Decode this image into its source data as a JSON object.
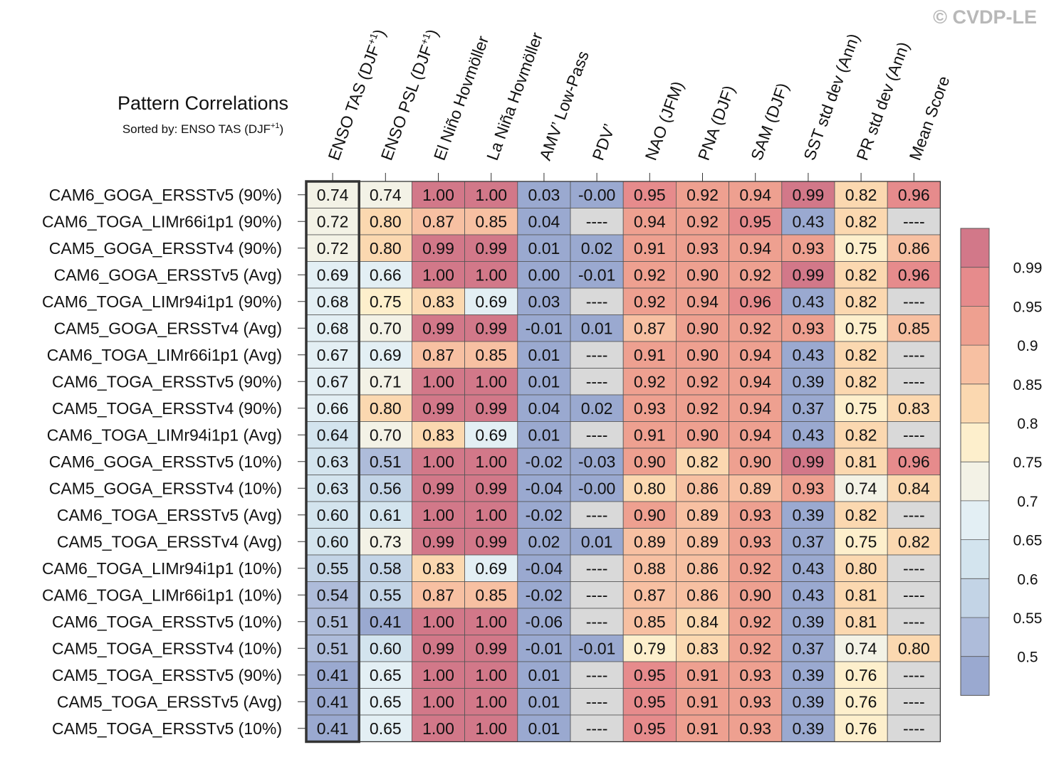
{
  "watermark": "© CVDP-LE",
  "chart_data": {
    "type": "table",
    "title": "Pattern Correlations",
    "subtitle_prefix": "Sorted by: ENSO TAS (DJF",
    "subtitle_sup": "+1",
    "subtitle_suffix": ")",
    "missing_label": "----",
    "columns": [
      {
        "label": "ENSO TAS (DJF",
        "sup": "+1",
        "suffix": ")"
      },
      {
        "label": "ENSO PSL (DJF",
        "sup": "+1",
        "suffix": ")"
      },
      {
        "label": "El Niño Hovmöller"
      },
      {
        "label": "La Niña Hovmöller"
      },
      {
        "label": "AMV’ Low-Pass"
      },
      {
        "label": "PDV’"
      },
      {
        "label": "NAO (JFM)"
      },
      {
        "label": "PNA (DJF)"
      },
      {
        "label": "SAM (DJF)"
      },
      {
        "label": "SST std dev (Ann)"
      },
      {
        "label": "PR std dev (Ann)"
      },
      {
        "label": "Mean Score"
      }
    ],
    "sorted_column": 0,
    "rows": [
      {
        "name": "CAM6_GOGA_ERSSTv5 (90%)",
        "values": [
          "0.74",
          "0.74",
          "1.00",
          "1.00",
          "0.03",
          "-0.00",
          "0.95",
          "0.92",
          "0.94",
          "0.99",
          "0.82",
          "0.96"
        ]
      },
      {
        "name": "CAM6_TOGA_LIMr66i1p1 (90%)",
        "values": [
          "0.72",
          "0.80",
          "0.87",
          "0.85",
          "0.04",
          null,
          "0.94",
          "0.92",
          "0.95",
          "0.43",
          "0.82",
          null
        ]
      },
      {
        "name": "CAM5_GOGA_ERSSTv4 (90%)",
        "values": [
          "0.72",
          "0.80",
          "0.99",
          "0.99",
          "0.01",
          "0.02",
          "0.91",
          "0.93",
          "0.94",
          "0.93",
          "0.75",
          "0.86"
        ]
      },
      {
        "name": "CAM6_GOGA_ERSSTv5 (Avg)",
        "values": [
          "0.69",
          "0.66",
          "1.00",
          "1.00",
          "0.00",
          "-0.01",
          "0.92",
          "0.90",
          "0.92",
          "0.99",
          "0.82",
          "0.96"
        ]
      },
      {
        "name": "CAM6_TOGA_LIMr94i1p1 (90%)",
        "values": [
          "0.68",
          "0.75",
          "0.83",
          "0.69",
          "0.03",
          null,
          "0.92",
          "0.94",
          "0.96",
          "0.43",
          "0.82",
          null
        ]
      },
      {
        "name": "CAM5_GOGA_ERSSTv4 (Avg)",
        "values": [
          "0.68",
          "0.70",
          "0.99",
          "0.99",
          "-0.01",
          "0.01",
          "0.87",
          "0.90",
          "0.92",
          "0.93",
          "0.75",
          "0.85"
        ]
      },
      {
        "name": "CAM6_TOGA_LIMr66i1p1 (Avg)",
        "values": [
          "0.67",
          "0.69",
          "0.87",
          "0.85",
          "0.01",
          null,
          "0.91",
          "0.90",
          "0.94",
          "0.43",
          "0.82",
          null
        ]
      },
      {
        "name": "CAM6_TOGA_ERSSTv5 (90%)",
        "values": [
          "0.67",
          "0.71",
          "1.00",
          "1.00",
          "0.01",
          null,
          "0.92",
          "0.92",
          "0.94",
          "0.39",
          "0.82",
          null
        ]
      },
      {
        "name": "CAM5_TOGA_ERSSTv4 (90%)",
        "values": [
          "0.66",
          "0.80",
          "0.99",
          "0.99",
          "0.04",
          "0.02",
          "0.93",
          "0.92",
          "0.94",
          "0.37",
          "0.75",
          "0.83"
        ]
      },
      {
        "name": "CAM6_TOGA_LIMr94i1p1 (Avg)",
        "values": [
          "0.64",
          "0.70",
          "0.83",
          "0.69",
          "0.01",
          null,
          "0.91",
          "0.90",
          "0.94",
          "0.43",
          "0.82",
          null
        ]
      },
      {
        "name": "CAM6_GOGA_ERSSTv5 (10%)",
        "values": [
          "0.63",
          "0.51",
          "1.00",
          "1.00",
          "-0.02",
          "-0.03",
          "0.90",
          "0.82",
          "0.90",
          "0.99",
          "0.81",
          "0.96"
        ]
      },
      {
        "name": "CAM5_GOGA_ERSSTv4 (10%)",
        "values": [
          "0.63",
          "0.56",
          "0.99",
          "0.99",
          "-0.04",
          "-0.00",
          "0.80",
          "0.86",
          "0.89",
          "0.93",
          "0.74",
          "0.84"
        ]
      },
      {
        "name": "CAM6_TOGA_ERSSTv5 (Avg)",
        "values": [
          "0.60",
          "0.61",
          "1.00",
          "1.00",
          "-0.02",
          null,
          "0.90",
          "0.89",
          "0.93",
          "0.39",
          "0.82",
          null
        ]
      },
      {
        "name": "CAM5_TOGA_ERSSTv4 (Avg)",
        "values": [
          "0.60",
          "0.73",
          "0.99",
          "0.99",
          "0.02",
          "0.01",
          "0.89",
          "0.89",
          "0.93",
          "0.37",
          "0.75",
          "0.82"
        ]
      },
      {
        "name": "CAM6_TOGA_LIMr94i1p1 (10%)",
        "values": [
          "0.55",
          "0.58",
          "0.83",
          "0.69",
          "-0.04",
          null,
          "0.88",
          "0.86",
          "0.92",
          "0.43",
          "0.80",
          null
        ]
      },
      {
        "name": "CAM6_TOGA_LIMr66i1p1 (10%)",
        "values": [
          "0.54",
          "0.55",
          "0.87",
          "0.85",
          "-0.02",
          null,
          "0.87",
          "0.86",
          "0.90",
          "0.43",
          "0.81",
          null
        ]
      },
      {
        "name": "CAM6_TOGA_ERSSTv5 (10%)",
        "values": [
          "0.51",
          "0.41",
          "1.00",
          "1.00",
          "-0.06",
          null,
          "0.85",
          "0.84",
          "0.92",
          "0.39",
          "0.81",
          null
        ]
      },
      {
        "name": "CAM5_TOGA_ERSSTv4 (10%)",
        "values": [
          "0.51",
          "0.60",
          "0.99",
          "0.99",
          "-0.01",
          "-0.01",
          "0.79",
          "0.83",
          "0.92",
          "0.37",
          "0.74",
          "0.80"
        ]
      },
      {
        "name": "CAM5_TOGA_ERSSTv5 (90%)",
        "values": [
          "0.41",
          "0.65",
          "1.00",
          "1.00",
          "0.01",
          null,
          "0.95",
          "0.91",
          "0.93",
          "0.39",
          "0.76",
          null
        ]
      },
      {
        "name": "CAM5_TOGA_ERSSTv5 (Avg)",
        "values": [
          "0.41",
          "0.65",
          "1.00",
          "1.00",
          "0.01",
          null,
          "0.95",
          "0.91",
          "0.93",
          "0.39",
          "0.76",
          null
        ]
      },
      {
        "name": "CAM5_TOGA_ERSSTv5 (10%)",
        "values": [
          "0.41",
          "0.65",
          "1.00",
          "1.00",
          "0.01",
          null,
          "0.95",
          "0.91",
          "0.93",
          "0.39",
          "0.76",
          null
        ]
      }
    ],
    "colorbar": {
      "levels": [
        0.5,
        0.55,
        0.6,
        0.65,
        0.7,
        0.75,
        0.8,
        0.85,
        0.9,
        0.95,
        0.99
      ],
      "tick_labels": [
        "0.5",
        "0.55",
        "0.6",
        "0.65",
        "0.7",
        "0.75",
        "0.8",
        "0.85",
        "0.9",
        "0.95",
        "0.99"
      ],
      "colors": [
        "#9aa9d0",
        "#aebcda",
        "#c3d4e6",
        "#d3e4ee",
        "#e3eff4",
        "#f3f2e6",
        "#fdefcc",
        "#fbd8b0",
        "#f7c0a2",
        "#eea090",
        "#e68b8c",
        "#d27889"
      ],
      "missing_color": "#d9d9d9"
    }
  }
}
